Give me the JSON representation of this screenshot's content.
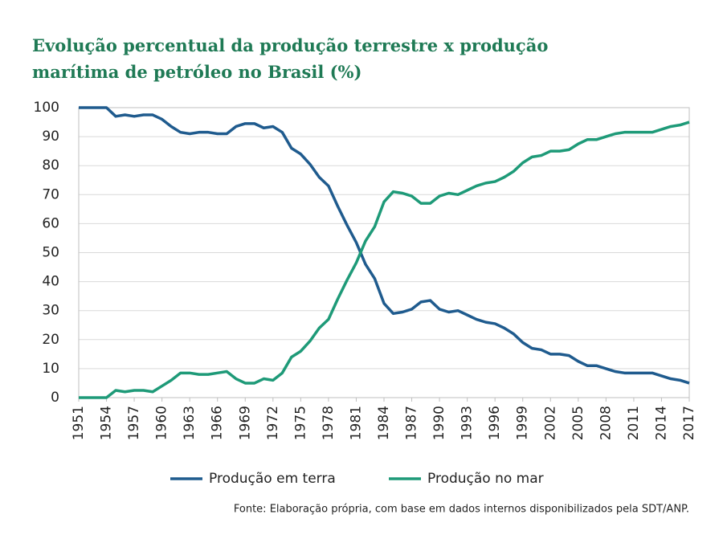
{
  "chart_data": {
    "type": "line",
    "title": "Evolução percentual da produção terrestre x produção marítima de petróleo no Brasil (%)",
    "source": "Fonte: Elaboração própria, com base em dados internos disponibilizados pela SDT/ANP.",
    "x": [
      1951,
      1952,
      1953,
      1954,
      1955,
      1956,
      1957,
      1958,
      1959,
      1960,
      1961,
      1962,
      1963,
      1964,
      1965,
      1966,
      1967,
      1968,
      1969,
      1970,
      1971,
      1972,
      1973,
      1974,
      1975,
      1976,
      1977,
      1978,
      1979,
      1980,
      1981,
      1982,
      1983,
      1984,
      1985,
      1986,
      1987,
      1988,
      1989,
      1990,
      1991,
      1992,
      1993,
      1994,
      1995,
      1996,
      1997,
      1998,
      1999,
      2000,
      2001,
      2002,
      2003,
      2004,
      2005,
      2006,
      2007,
      2008,
      2009,
      2010,
      2011,
      2012,
      2013,
      2014,
      2015,
      2016,
      2017
    ],
    "series": [
      {
        "name": "Produção em terra",
        "color": "#1f5b8e",
        "values": [
          100,
          100,
          100,
          100,
          97,
          97.5,
          97,
          97.5,
          97.5,
          96,
          93.5,
          91.5,
          91,
          91.5,
          91.5,
          91,
          91,
          93.5,
          94.5,
          94.5,
          93,
          93.5,
          91.5,
          86,
          84,
          80.5,
          76,
          73,
          66,
          59.5,
          53.5,
          46,
          41,
          32.5,
          29,
          29.5,
          30.5,
          33,
          33.5,
          30.5,
          29.5,
          30,
          28.5,
          27,
          26,
          25.5,
          24,
          22,
          19,
          17,
          16.5,
          15,
          15,
          14.5,
          12.5,
          11,
          11,
          10,
          9,
          8.5,
          8.5,
          8.5,
          8.5,
          7.5,
          6.5,
          6,
          5
        ]
      },
      {
        "name": "Produção no mar",
        "color": "#1e9a78",
        "values": [
          0,
          0,
          0,
          0,
          2.5,
          2,
          2.5,
          2.5,
          2,
          4,
          6,
          8.5,
          8.5,
          8,
          8,
          8.5,
          9,
          6.5,
          5,
          5,
          6.5,
          6,
          8.5,
          14,
          16,
          19.5,
          24,
          27,
          34,
          40.5,
          46.5,
          54,
          59,
          67.5,
          71,
          70.5,
          69.5,
          67,
          67,
          69.5,
          70.5,
          70,
          71.5,
          73,
          74,
          74.5,
          76,
          78,
          81,
          83,
          83.5,
          85,
          85,
          85.5,
          87.5,
          89,
          89,
          90,
          91,
          91.5,
          91.5,
          91.5,
          91.5,
          92.5,
          93.5,
          94,
          95
        ]
      }
    ],
    "xlim": [
      1951,
      2017
    ],
    "xticks": [
      1951,
      1954,
      1957,
      1960,
      1963,
      1966,
      1969,
      1972,
      1975,
      1978,
      1981,
      1984,
      1987,
      1990,
      1993,
      1996,
      1999,
      2002,
      2005,
      2008,
      2011,
      2014,
      2017
    ],
    "ylim": [
      0,
      100
    ],
    "yticks": [
      0,
      10,
      20,
      30,
      40,
      50,
      60,
      70,
      80,
      90,
      100
    ],
    "grid": true
  }
}
